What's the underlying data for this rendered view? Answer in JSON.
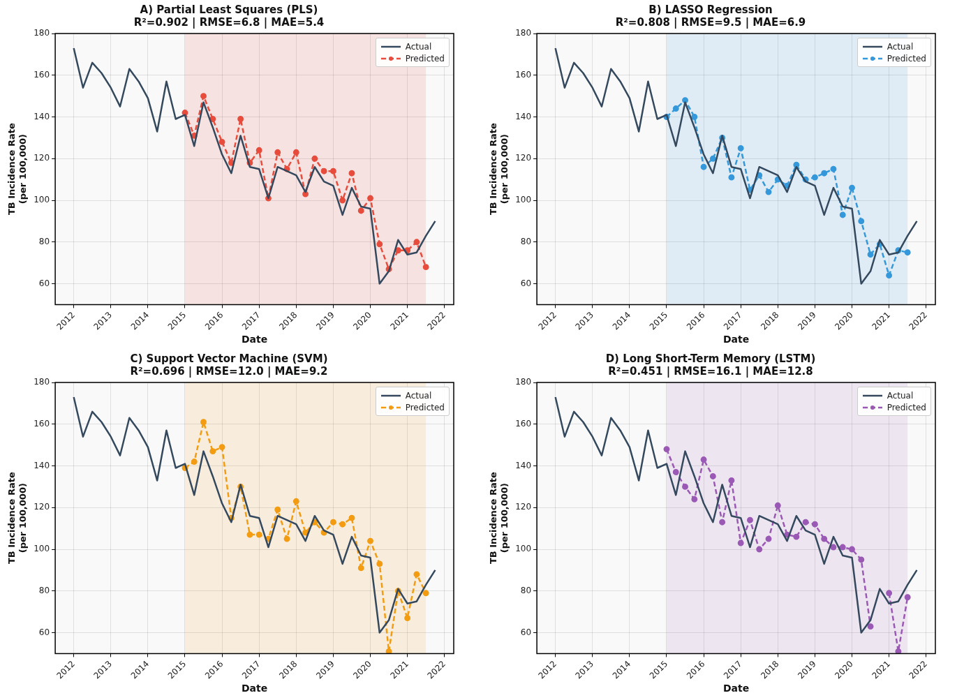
{
  "chart_data": [
    {
      "type": "line",
      "title": "A) Partial Least Squares (PLS)",
      "subtitle": "R²=0.902 | RMSE=6.8 | MAE=5.4",
      "xlabel": "Date",
      "ylabel": "TB Incidence Rate\n(per 100,000)",
      "xlim": [
        2011.5,
        2022.25
      ],
      "xticks": [
        2012,
        2013,
        2014,
        2015,
        2016,
        2017,
        2018,
        2019,
        2020,
        2021,
        2022
      ],
      "ylim": [
        50,
        180
      ],
      "yticks": [
        60,
        80,
        100,
        120,
        140,
        160,
        180
      ],
      "grid": true,
      "legend": "top right",
      "bands": [
        {
          "axis": "x",
          "from": 2015,
          "to": 2021.5,
          "color": "#e74c3c"
        }
      ],
      "series": [
        {
          "name": "Actual",
          "color": "#34495e",
          "marker": "none",
          "line_style": "solid",
          "x": [
            2012,
            2012.25,
            2012.5,
            2012.75,
            2013,
            2013.25,
            2013.5,
            2013.75,
            2014,
            2014.25,
            2014.5,
            2014.75,
            2015,
            2015.25,
            2015.5,
            2015.75,
            2016,
            2016.25,
            2016.5,
            2016.75,
            2017,
            2017.25,
            2017.5,
            2017.75,
            2018,
            2018.25,
            2018.5,
            2018.75,
            2019,
            2019.25,
            2019.5,
            2019.75,
            2020,
            2020.25,
            2020.5,
            2020.75,
            2021,
            2021.25,
            2021.5,
            2021.75
          ],
          "values": [
            173,
            154,
            166,
            161,
            154,
            145,
            163,
            157,
            149,
            133,
            157,
            139,
            141,
            126,
            147,
            135,
            122,
            113,
            131,
            116,
            115,
            101,
            116,
            114,
            112,
            104,
            116,
            109,
            107,
            93,
            106,
            97,
            96,
            60,
            66,
            81,
            74,
            75,
            83,
            90
          ]
        },
        {
          "name": "Predicted",
          "color": "#e74c3c",
          "marker": "circle",
          "line_style": "dashed",
          "x": [
            2015,
            2015.25,
            2015.5,
            2015.75,
            2016,
            2016.25,
            2016.5,
            2016.75,
            2017,
            2017.25,
            2017.5,
            2017.75,
            2018,
            2018.25,
            2018.5,
            2018.75,
            2019,
            2019.25,
            2019.5,
            2019.75,
            2020,
            2020.25,
            2020.5,
            2020.75,
            2021,
            2021.25,
            2021.5
          ],
          "values": [
            142,
            131,
            150,
            139,
            128,
            118,
            139,
            118,
            124,
            101,
            123,
            115,
            123,
            103,
            120,
            114,
            114,
            100,
            113,
            95,
            101,
            79,
            67,
            76,
            76,
            80,
            68
          ]
        }
      ]
    },
    {
      "type": "line",
      "title": "B) LASSO Regression",
      "subtitle": "R²=0.808 | RMSE=9.5 | MAE=6.9",
      "xlabel": "Date",
      "ylabel": "TB Incidence Rate\n(per 100,000)",
      "xlim": [
        2011.5,
        2022.25
      ],
      "xticks": [
        2012,
        2013,
        2014,
        2015,
        2016,
        2017,
        2018,
        2019,
        2020,
        2021,
        2022
      ],
      "ylim": [
        50,
        180
      ],
      "yticks": [
        60,
        80,
        100,
        120,
        140,
        160,
        180
      ],
      "grid": true,
      "legend": "top right",
      "bands": [
        {
          "axis": "x",
          "from": 2015,
          "to": 2021.5,
          "color": "#3498db"
        }
      ],
      "series": [
        {
          "name": "Actual",
          "color": "#34495e",
          "marker": "none",
          "line_style": "solid",
          "x": [
            2012,
            2012.25,
            2012.5,
            2012.75,
            2013,
            2013.25,
            2013.5,
            2013.75,
            2014,
            2014.25,
            2014.5,
            2014.75,
            2015,
            2015.25,
            2015.5,
            2015.75,
            2016,
            2016.25,
            2016.5,
            2016.75,
            2017,
            2017.25,
            2017.5,
            2017.75,
            2018,
            2018.25,
            2018.5,
            2018.75,
            2019,
            2019.25,
            2019.5,
            2019.75,
            2020,
            2020.25,
            2020.5,
            2020.75,
            2021,
            2021.25,
            2021.5,
            2021.75
          ],
          "values": [
            173,
            154,
            166,
            161,
            154,
            145,
            163,
            157,
            149,
            133,
            157,
            139,
            141,
            126,
            147,
            135,
            122,
            113,
            131,
            116,
            115,
            101,
            116,
            114,
            112,
            104,
            116,
            109,
            107,
            93,
            106,
            97,
            96,
            60,
            66,
            81,
            74,
            75,
            83,
            90
          ]
        },
        {
          "name": "Predicted",
          "color": "#3498db",
          "marker": "circle",
          "line_style": "dashed",
          "x": [
            2015,
            2015.25,
            2015.5,
            2015.75,
            2016,
            2016.25,
            2016.5,
            2016.75,
            2017,
            2017.25,
            2017.5,
            2017.75,
            2018,
            2018.25,
            2018.5,
            2018.75,
            2019,
            2019.25,
            2019.5,
            2019.75,
            2020,
            2020.25,
            2020.5,
            2020.75,
            2021,
            2021.25,
            2021.5
          ],
          "values": [
            140,
            144,
            148,
            140,
            116,
            120,
            130,
            111,
            125,
            105,
            112,
            104,
            110,
            107,
            117,
            110,
            111,
            113,
            115,
            93,
            106,
            90,
            74,
            79,
            64,
            76,
            75
          ]
        }
      ]
    },
    {
      "type": "line",
      "title": "C) Support Vector Machine (SVM)",
      "subtitle": "R²=0.696 | RMSE=12.0 | MAE=9.2",
      "xlabel": "Date",
      "ylabel": "TB Incidence Rate\n(per 100,000)",
      "xlim": [
        2011.5,
        2022.25
      ],
      "xticks": [
        2012,
        2013,
        2014,
        2015,
        2016,
        2017,
        2018,
        2019,
        2020,
        2021,
        2022
      ],
      "ylim": [
        50,
        180
      ],
      "yticks": [
        60,
        80,
        100,
        120,
        140,
        160,
        180
      ],
      "grid": true,
      "legend": "top right",
      "bands": [
        {
          "axis": "x",
          "from": 2015,
          "to": 2021.5,
          "color": "#f39c12"
        }
      ],
      "series": [
        {
          "name": "Actual",
          "color": "#34495e",
          "marker": "none",
          "line_style": "solid",
          "x": [
            2012,
            2012.25,
            2012.5,
            2012.75,
            2013,
            2013.25,
            2013.5,
            2013.75,
            2014,
            2014.25,
            2014.5,
            2014.75,
            2015,
            2015.25,
            2015.5,
            2015.75,
            2016,
            2016.25,
            2016.5,
            2016.75,
            2017,
            2017.25,
            2017.5,
            2017.75,
            2018,
            2018.25,
            2018.5,
            2018.75,
            2019,
            2019.25,
            2019.5,
            2019.75,
            2020,
            2020.25,
            2020.5,
            2020.75,
            2021,
            2021.25,
            2021.5,
            2021.75
          ],
          "values": [
            173,
            154,
            166,
            161,
            154,
            145,
            163,
            157,
            149,
            133,
            157,
            139,
            141,
            126,
            147,
            135,
            122,
            113,
            131,
            116,
            115,
            101,
            116,
            114,
            112,
            104,
            116,
            109,
            107,
            93,
            106,
            97,
            96,
            60,
            66,
            81,
            74,
            75,
            83,
            90
          ]
        },
        {
          "name": "Predicted",
          "color": "#f39c12",
          "marker": "circle",
          "line_style": "dashed",
          "x": [
            2015,
            2015.25,
            2015.5,
            2015.75,
            2016,
            2016.25,
            2016.5,
            2016.75,
            2017,
            2017.25,
            2017.5,
            2017.75,
            2018,
            2018.25,
            2018.5,
            2018.75,
            2019,
            2019.25,
            2019.5,
            2019.75,
            2020,
            2020.25,
            2020.5,
            2020.75,
            2021,
            2021.25,
            2021.5
          ],
          "values": [
            139,
            142,
            161,
            147,
            149,
            115,
            130,
            107,
            107,
            105,
            119,
            105,
            123,
            108,
            113,
            108,
            113,
            112,
            115,
            91,
            104,
            93,
            51,
            80,
            67,
            88,
            79
          ]
        }
      ]
    },
    {
      "type": "line",
      "title": "D) Long Short-Term Memory (LSTM)",
      "subtitle": "R²=0.451 | RMSE=16.1 | MAE=12.8",
      "xlabel": "Date",
      "ylabel": "TB Incidence Rate\n(per 100,000)",
      "xlim": [
        2011.5,
        2022.25
      ],
      "xticks": [
        2012,
        2013,
        2014,
        2015,
        2016,
        2017,
        2018,
        2019,
        2020,
        2021,
        2022
      ],
      "ylim": [
        50,
        180
      ],
      "yticks": [
        60,
        80,
        100,
        120,
        140,
        160,
        180
      ],
      "grid": true,
      "legend": "top right",
      "bands": [
        {
          "axis": "x",
          "from": 2015,
          "to": 2021.5,
          "color": "#9b59b6"
        }
      ],
      "series": [
        {
          "name": "Actual",
          "color": "#34495e",
          "marker": "none",
          "line_style": "solid",
          "x": [
            2012,
            2012.25,
            2012.5,
            2012.75,
            2013,
            2013.25,
            2013.5,
            2013.75,
            2014,
            2014.25,
            2014.5,
            2014.75,
            2015,
            2015.25,
            2015.5,
            2015.75,
            2016,
            2016.25,
            2016.5,
            2016.75,
            2017,
            2017.25,
            2017.5,
            2017.75,
            2018,
            2018.25,
            2018.5,
            2018.75,
            2019,
            2019.25,
            2019.5,
            2019.75,
            2020,
            2020.25,
            2020.5,
            2020.75,
            2021,
            2021.25,
            2021.5,
            2021.75
          ],
          "values": [
            173,
            154,
            166,
            161,
            154,
            145,
            163,
            157,
            149,
            133,
            157,
            139,
            141,
            126,
            147,
            135,
            122,
            113,
            131,
            116,
            115,
            101,
            116,
            114,
            112,
            104,
            116,
            109,
            107,
            93,
            106,
            97,
            96,
            60,
            66,
            81,
            74,
            75,
            83,
            90
          ]
        },
        {
          "name": "Predicted",
          "color": "#9b59b6",
          "marker": "circle",
          "line_style": "dashed",
          "x": [
            2015,
            2015.25,
            2015.5,
            2015.75,
            2016,
            2016.25,
            2016.5,
            2016.75,
            2017,
            2017.25,
            2017.5,
            2017.75,
            2018,
            2018.25,
            2018.5,
            2018.75,
            2019,
            2019.25,
            2019.5,
            2019.75,
            2020,
            2020.25,
            2020.5,
            2020.75,
            2021,
            2021.25,
            2021.5
          ],
          "values": [
            148,
            137,
            130,
            124,
            143,
            135,
            113,
            133,
            103,
            114,
            100,
            105,
            121,
            107,
            106,
            113,
            112,
            105,
            101,
            101,
            100,
            95,
            63,
            null,
            79,
            51,
            77
          ]
        }
      ]
    }
  ]
}
